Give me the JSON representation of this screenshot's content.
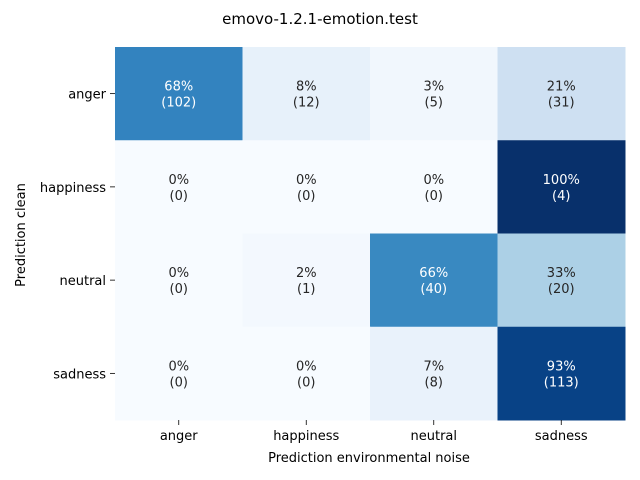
{
  "chart_data": {
    "type": "heatmap",
    "title": "emovo-1.2.1-emotion.test",
    "xlabel": "Prediction environmental noise",
    "ylabel": "Prediction clean",
    "x_categories": [
      "anger",
      "happiness",
      "neutral",
      "sadness"
    ],
    "y_categories": [
      "anger",
      "happiness",
      "neutral",
      "sadness"
    ],
    "percent_labels": [
      [
        "68%",
        "8%",
        "3%",
        "21%"
      ],
      [
        "0%",
        "0%",
        "0%",
        "100%"
      ],
      [
        "0%",
        "2%",
        "66%",
        "33%"
      ],
      [
        "0%",
        "0%",
        "7%",
        "93%"
      ]
    ],
    "count_labels": [
      [
        "(102)",
        "(12)",
        "(5)",
        "(31)"
      ],
      [
        "(0)",
        "(0)",
        "(0)",
        "(4)"
      ],
      [
        "(0)",
        "(1)",
        "(40)",
        "(20)"
      ],
      [
        "(0)",
        "(0)",
        "(8)",
        "(113)"
      ]
    ],
    "fractions": [
      [
        0.68,
        0.08,
        0.03,
        0.21
      ],
      [
        0.0,
        0.0,
        0.0,
        1.0
      ],
      [
        0.0,
        0.02,
        0.66,
        0.33
      ],
      [
        0.0,
        0.0,
        0.07,
        0.93
      ]
    ],
    "colormap": "Blues",
    "color_range": [
      0,
      1
    ],
    "colorbar": false,
    "grid": false
  }
}
